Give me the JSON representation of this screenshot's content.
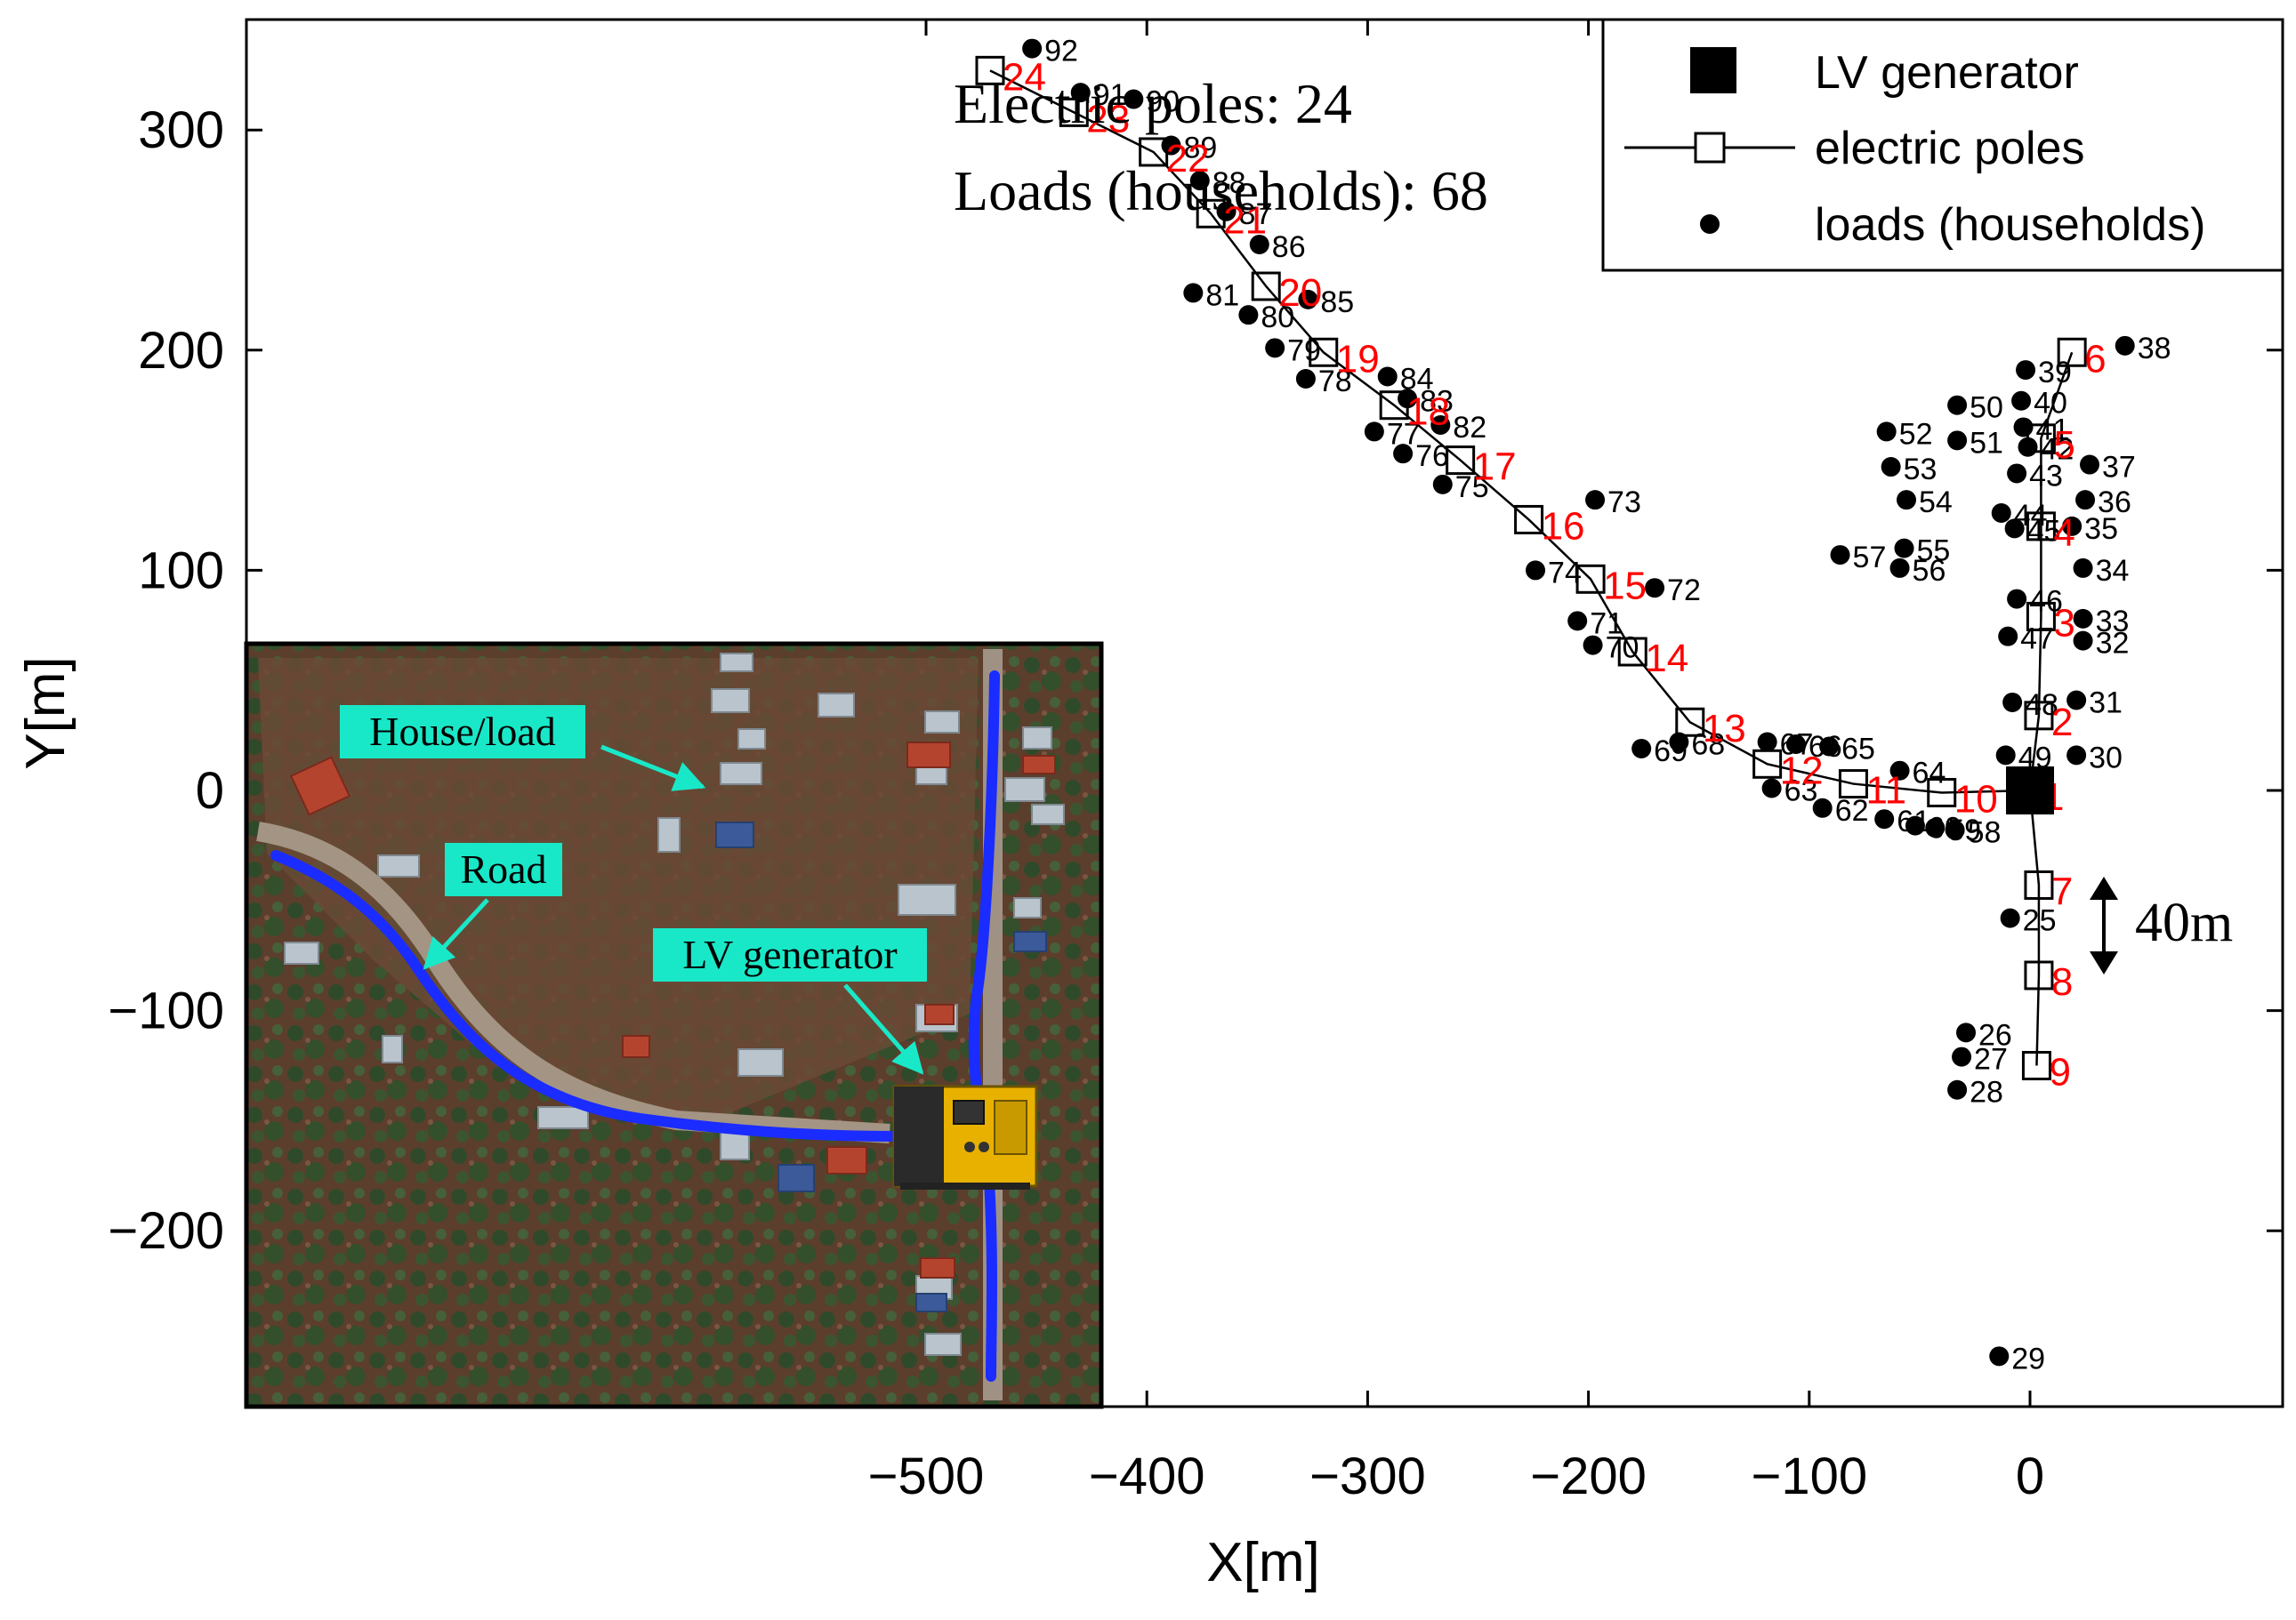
{
  "chart_data": {
    "type": "scatter",
    "xlabel": "X[m]",
    "ylabel": "Y[m]",
    "xlim": [
      -500,
      70
    ],
    "ylim": [
      -280,
      350
    ],
    "xticks": [
      -500,
      -400,
      -300,
      -200,
      -100,
      0
    ],
    "yticks": [
      -200,
      -100,
      0,
      100,
      200,
      300
    ],
    "xtick_labels": [
      "−500",
      "−400",
      "−300",
      "−200",
      "−100",
      "0"
    ],
    "ytick_labels": [
      "−200",
      "−100",
      "0",
      "100",
      "200",
      "300"
    ],
    "grid": false,
    "legend": {
      "placement": "top-right",
      "entries": [
        {
          "label": "LV generator",
          "marker": "filled-square"
        },
        {
          "label": "electric poles",
          "marker": "line-open-square"
        },
        {
          "label": "loads (households)",
          "marker": "filled-dot"
        }
      ]
    },
    "annotations": {
      "poles_count": "Electric poles: 24",
      "loads_count": "Loads (households): 68",
      "scale": "40m"
    },
    "generator": {
      "x": 0,
      "y": 0,
      "label": "1"
    },
    "poles": [
      {
        "label": "1",
        "x": 0,
        "y": 0
      },
      {
        "label": "2",
        "x": 4,
        "y": 34
      },
      {
        "label": "3",
        "x": 5,
        "y": 79
      },
      {
        "label": "4",
        "x": 5,
        "y": 120
      },
      {
        "label": "5",
        "x": 5,
        "y": 160
      },
      {
        "label": "6",
        "x": 19,
        "y": 199
      },
      {
        "label": "7",
        "x": 4,
        "y": -43
      },
      {
        "label": "8",
        "x": 4,
        "y": -84
      },
      {
        "label": "9",
        "x": 3,
        "y": -125
      },
      {
        "label": "10",
        "x": -40,
        "y": -1
      },
      {
        "label": "11",
        "x": -80,
        "y": 3
      },
      {
        "label": "12",
        "x": -119,
        "y": 12
      },
      {
        "label": "13",
        "x": -154,
        "y": 31
      },
      {
        "label": "14",
        "x": -180,
        "y": 63
      },
      {
        "label": "15",
        "x": -199,
        "y": 96
      },
      {
        "label": "16",
        "x": -227,
        "y": 123
      },
      {
        "label": "17",
        "x": -258,
        "y": 150
      },
      {
        "label": "18",
        "x": -288,
        "y": 175
      },
      {
        "label": "19",
        "x": -320,
        "y": 199
      },
      {
        "label": "20",
        "x": -346,
        "y": 229
      },
      {
        "label": "21",
        "x": -371,
        "y": 262
      },
      {
        "label": "22",
        "x": -397,
        "y": 290
      },
      {
        "label": "23",
        "x": -433,
        "y": 308
      },
      {
        "label": "24",
        "x": -471,
        "y": 327
      }
    ],
    "pole_lines": [
      [
        "24",
        "23",
        "22",
        "21",
        "20",
        "19",
        "18",
        "17",
        "16",
        "15",
        "14",
        "13",
        "12",
        "11",
        "10",
        "1"
      ],
      [
        "1",
        "2",
        "3",
        "4",
        "5",
        "6"
      ],
      [
        "1",
        "7",
        "8",
        "9"
      ]
    ],
    "loads": [
      {
        "label": "25",
        "x": -9,
        "y": -58
      },
      {
        "label": "26",
        "x": -29,
        "y": -110
      },
      {
        "label": "27",
        "x": -31,
        "y": -121
      },
      {
        "label": "28",
        "x": -33,
        "y": -136
      },
      {
        "label": "29",
        "x": -14,
        "y": -257
      },
      {
        "label": "30",
        "x": 21,
        "y": 16
      },
      {
        "label": "31",
        "x": 21,
        "y": 41
      },
      {
        "label": "32",
        "x": 24,
        "y": 68
      },
      {
        "label": "33",
        "x": 24,
        "y": 78
      },
      {
        "label": "34",
        "x": 24,
        "y": 101
      },
      {
        "label": "35",
        "x": 19,
        "y": 120
      },
      {
        "label": "36",
        "x": 25,
        "y": 132
      },
      {
        "label": "37",
        "x": 27,
        "y": 148
      },
      {
        "label": "38",
        "x": 43,
        "y": 202
      },
      {
        "label": "39",
        "x": -2,
        "y": 191
      },
      {
        "label": "40",
        "x": -4,
        "y": 177
      },
      {
        "label": "41",
        "x": -3,
        "y": 165
      },
      {
        "label": "42",
        "x": -1,
        "y": 156
      },
      {
        "label": "43",
        "x": -6,
        "y": 144
      },
      {
        "label": "44",
        "x": -13,
        "y": 126
      },
      {
        "label": "45",
        "x": -7,
        "y": 119
      },
      {
        "label": "46",
        "x": -6,
        "y": 87
      },
      {
        "label": "47",
        "x": -10,
        "y": 70
      },
      {
        "label": "48",
        "x": -8,
        "y": 40
      },
      {
        "label": "49",
        "x": -11,
        "y": 16
      },
      {
        "label": "50",
        "x": -33,
        "y": 175
      },
      {
        "label": "51",
        "x": -33,
        "y": 159
      },
      {
        "label": "52",
        "x": -65,
        "y": 163
      },
      {
        "label": "53",
        "x": -63,
        "y": 147
      },
      {
        "label": "54",
        "x": -56,
        "y": 132
      },
      {
        "label": "55",
        "x": -57,
        "y": 110
      },
      {
        "label": "56",
        "x": -59,
        "y": 101
      },
      {
        "label": "57",
        "x": -86,
        "y": 107
      },
      {
        "label": "58",
        "x": -34,
        "y": -18
      },
      {
        "label": "59",
        "x": -43,
        "y": -17
      },
      {
        "label": "60",
        "x": -52,
        "y": -16
      },
      {
        "label": "61",
        "x": -66,
        "y": -13
      },
      {
        "label": "62",
        "x": -94,
        "y": -8
      },
      {
        "label": "63",
        "x": -117,
        "y": 1
      },
      {
        "label": "64",
        "x": -59,
        "y": 9
      },
      {
        "label": "65",
        "x": -91,
        "y": 20
      },
      {
        "label": "66",
        "x": -106,
        "y": 21
      },
      {
        "label": "67",
        "x": -119,
        "y": 22
      },
      {
        "label": "68",
        "x": -159,
        "y": 22
      },
      {
        "label": "69",
        "x": -176,
        "y": 19
      },
      {
        "label": "70",
        "x": -198,
        "y": 66
      },
      {
        "label": "71",
        "x": -205,
        "y": 77
      },
      {
        "label": "72",
        "x": -170,
        "y": 92
      },
      {
        "label": "73",
        "x": -197,
        "y": 132
      },
      {
        "label": "74",
        "x": -224,
        "y": 100
      },
      {
        "label": "75",
        "x": -266,
        "y": 139
      },
      {
        "label": "76",
        "x": -284,
        "y": 153
      },
      {
        "label": "77",
        "x": -297,
        "y": 163
      },
      {
        "label": "78",
        "x": -328,
        "y": 187
      },
      {
        "label": "79",
        "x": -342,
        "y": 201
      },
      {
        "label": "80",
        "x": -354,
        "y": 216
      },
      {
        "label": "81",
        "x": -379,
        "y": 226
      },
      {
        "label": "82",
        "x": -267,
        "y": 166
      },
      {
        "label": "83",
        "x": -282,
        "y": 178
      },
      {
        "label": "84",
        "x": -291,
        "y": 188
      },
      {
        "label": "85",
        "x": -327,
        "y": 223
      },
      {
        "label": "86",
        "x": -349,
        "y": 248
      },
      {
        "label": "87",
        "x": -364,
        "y": 263
      },
      {
        "label": "88",
        "x": -376,
        "y": 277
      },
      {
        "label": "89",
        "x": -389,
        "y": 293
      },
      {
        "label": "90",
        "x": -406,
        "y": 314
      },
      {
        "label": "91",
        "x": -430,
        "y": 317
      },
      {
        "label": "92",
        "x": -452,
        "y": 337
      }
    ],
    "inset": {
      "labels": {
        "house": "House/load",
        "road": "Road",
        "generator": "LV generator"
      }
    }
  },
  "colors": {
    "pole_label": "#ff0000",
    "inset_label_bg": "#19e8c8",
    "road": "#1a2cff",
    "generator_body": "#f0b400"
  }
}
